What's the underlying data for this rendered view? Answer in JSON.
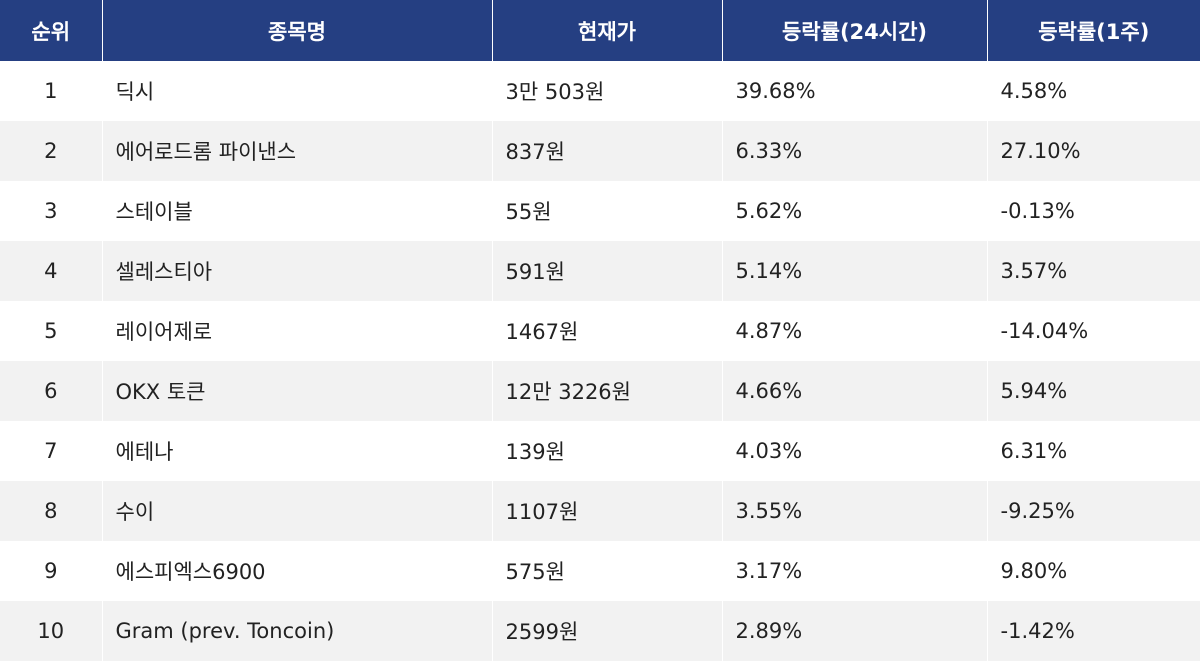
{
  "table": {
    "headers": {
      "rank": "순위",
      "name": "종목명",
      "price": "현재가",
      "change_24h": "등락률(24시간)",
      "change_1w": "등락률(1주)"
    },
    "rows": [
      {
        "rank": "1",
        "name": "딕시",
        "price": "3만 503원",
        "change_24h": "39.68%",
        "change_1w": "4.58%"
      },
      {
        "rank": "2",
        "name": "에어로드롬 파이낸스",
        "price": "837원",
        "change_24h": "6.33%",
        "change_1w": "27.10%"
      },
      {
        "rank": "3",
        "name": "스테이블",
        "price": "55원",
        "change_24h": "5.62%",
        "change_1w": "-0.13%"
      },
      {
        "rank": "4",
        "name": "셀레스티아",
        "price": "591원",
        "change_24h": "5.14%",
        "change_1w": "3.57%"
      },
      {
        "rank": "5",
        "name": "레이어제로",
        "price": "1467원",
        "change_24h": "4.87%",
        "change_1w": "-14.04%"
      },
      {
        "rank": "6",
        "name": "OKX 토큰",
        "price": "12만 3226원",
        "change_24h": "4.66%",
        "change_1w": "5.94%"
      },
      {
        "rank": "7",
        "name": "에테나",
        "price": "139원",
        "change_24h": "4.03%",
        "change_1w": "6.31%"
      },
      {
        "rank": "8",
        "name": "수이",
        "price": "1107원",
        "change_24h": "3.55%",
        "change_1w": "-9.25%"
      },
      {
        "rank": "9",
        "name": "에스피엑스6900",
        "price": "575원",
        "change_24h": "3.17%",
        "change_1w": "9.80%"
      },
      {
        "rank": "10",
        "name": "Gram (prev. Toncoin)",
        "price": "2599원",
        "change_24h": "2.89%",
        "change_1w": "-1.42%"
      }
    ]
  },
  "colors": {
    "header_bg": "#253f82",
    "header_text": "#ffffff",
    "row_alt_bg": "#f2f2f2",
    "cell_text": "#222222"
  }
}
